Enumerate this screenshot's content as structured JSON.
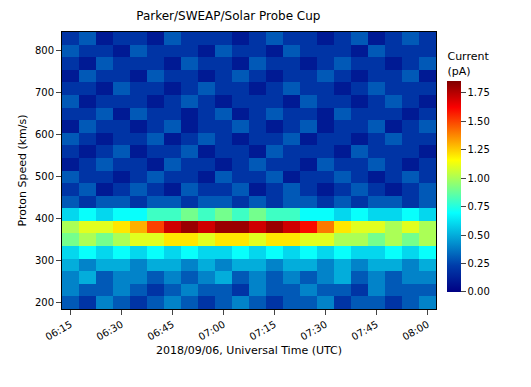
{
  "chart_data": {
    "type": "heatmap",
    "title": "Parker/SWEAP/Solar Probe Cup",
    "x_label": "2018/09/06, Universal Time (UTC)",
    "y_label": "Proton Speed (km/s)",
    "color": "Jet",
    "x": [
      "2018-09-06 06:15",
      "2018-09-06 06:20",
      "2018-09-06 06:25",
      "2018-09-06 06:30",
      "2018-09-06 06:35",
      "2018-09-06 06:40",
      "2018-09-06 06:45",
      "2018-09-06 06:50",
      "2018-09-06 06:55",
      "2018-09-06 07:00",
      "2018-09-06 07:05",
      "2018-09-06 07:10",
      "2018-09-06 07:15",
      "2018-09-06 07:20",
      "2018-09-06 07:25",
      "2018-09-06 07:30",
      "2018-09-06 07:35",
      "2018-09-06 07:40",
      "2018-09-06 07:45",
      "2018-09-06 07:50",
      "2018-09-06 07:55",
      "2018-09-06 08:00"
    ],
    "y": [
      200,
      230,
      260,
      290,
      320,
      350,
      380,
      410,
      440,
      470,
      500,
      530,
      560,
      590,
      620,
      650,
      680,
      710,
      740,
      770,
      800,
      830
    ],
    "z": [
      [
        0.3,
        0.2,
        0.4,
        0.3,
        0.2,
        0.3,
        0.4,
        0.3,
        0.2,
        0.3,
        0.4,
        0.3,
        0.2,
        0.3,
        0.3,
        0.4,
        0.2,
        0.3,
        0.3,
        0.2,
        0.3,
        0.4
      ],
      [
        0.4,
        0.3,
        0.3,
        0.4,
        0.3,
        0.2,
        0.3,
        0.4,
        0.3,
        0.3,
        0.2,
        0.4,
        0.3,
        0.3,
        0.4,
        0.3,
        0.3,
        0.2,
        0.4,
        0.3,
        0.3,
        0.3
      ],
      [
        0.4,
        0.5,
        0.3,
        0.4,
        0.4,
        0.3,
        0.4,
        0.3,
        0.4,
        0.5,
        0.3,
        0.4,
        0.3,
        0.4,
        0.3,
        0.4,
        0.5,
        0.3,
        0.4,
        0.3,
        0.4,
        0.4
      ],
      [
        0.5,
        0.4,
        0.5,
        0.5,
        0.4,
        0.5,
        0.5,
        0.4,
        0.5,
        0.4,
        0.5,
        0.5,
        0.4,
        0.5,
        0.5,
        0.4,
        0.5,
        0.4,
        0.5,
        0.5,
        0.4,
        0.5
      ],
      [
        0.6,
        0.7,
        0.6,
        0.7,
        0.6,
        0.7,
        0.6,
        0.7,
        0.6,
        0.6,
        0.7,
        0.6,
        0.7,
        0.6,
        0.7,
        0.6,
        0.7,
        0.6,
        0.6,
        0.7,
        0.6,
        0.7
      ],
      [
        0.9,
        1.0,
        0.9,
        1.0,
        1.1,
        1.1,
        1.2,
        1.2,
        1.1,
        1.2,
        1.2,
        1.1,
        1.2,
        1.2,
        1.1,
        1.1,
        1.0,
        1.0,
        0.9,
        1.0,
        0.9,
        1.0
      ],
      [
        1.0,
        1.1,
        1.1,
        1.2,
        1.3,
        1.5,
        1.7,
        1.8,
        1.7,
        1.8,
        1.8,
        1.7,
        1.8,
        1.7,
        1.6,
        1.4,
        1.2,
        1.1,
        1.1,
        1.0,
        1.1,
        1.0
      ],
      [
        0.6,
        0.7,
        0.6,
        0.7,
        0.7,
        0.8,
        0.8,
        0.9,
        0.8,
        0.9,
        0.8,
        0.9,
        0.8,
        0.8,
        0.7,
        0.7,
        0.6,
        0.7,
        0.6,
        0.6,
        0.7,
        0.6
      ],
      [
        0.3,
        0.2,
        0.3,
        0.3,
        0.2,
        0.3,
        0.3,
        0.2,
        0.3,
        0.3,
        0.2,
        0.3,
        0.2,
        0.3,
        0.3,
        0.2,
        0.3,
        0.2,
        0.3,
        0.3,
        0.2,
        0.3
      ],
      [
        0.2,
        0.3,
        0.1,
        0.2,
        0.3,
        0.2,
        0.1,
        0.3,
        0.2,
        0.2,
        0.3,
        0.1,
        0.2,
        0.3,
        0.2,
        0.1,
        0.2,
        0.3,
        0.2,
        0.1,
        0.2,
        0.3
      ],
      [
        0.3,
        0.2,
        0.2,
        0.1,
        0.2,
        0.3,
        0.2,
        0.2,
        0.1,
        0.3,
        0.2,
        0.2,
        0.3,
        0.1,
        0.2,
        0.2,
        0.3,
        0.2,
        0.1,
        0.2,
        0.3,
        0.2
      ],
      [
        0.1,
        0.2,
        0.3,
        0.2,
        0.2,
        0.1,
        0.3,
        0.2,
        0.2,
        0.1,
        0.2,
        0.3,
        0.2,
        0.2,
        0.1,
        0.3,
        0.2,
        0.2,
        0.3,
        0.2,
        0.1,
        0.2
      ],
      [
        0.2,
        0.1,
        0.2,
        0.3,
        0.1,
        0.2,
        0.2,
        0.3,
        0.1,
        0.2,
        0.2,
        0.1,
        0.3,
        0.2,
        0.2,
        0.2,
        0.1,
        0.3,
        0.2,
        0.2,
        0.2,
        0.1
      ],
      [
        0.3,
        0.2,
        0.1,
        0.2,
        0.2,
        0.3,
        0.1,
        0.2,
        0.3,
        0.2,
        0.1,
        0.2,
        0.2,
        0.3,
        0.1,
        0.2,
        0.2,
        0.1,
        0.2,
        0.3,
        0.2,
        0.2
      ],
      [
        0.1,
        0.3,
        0.2,
        0.2,
        0.1,
        0.2,
        0.3,
        0.1,
        0.2,
        0.2,
        0.3,
        0.2,
        0.1,
        0.2,
        0.3,
        0.1,
        0.2,
        0.2,
        0.3,
        0.1,
        0.2,
        0.3
      ],
      [
        0.2,
        0.2,
        0.3,
        0.1,
        0.3,
        0.2,
        0.2,
        0.1,
        0.2,
        0.3,
        0.1,
        0.2,
        0.3,
        0.2,
        0.2,
        0.1,
        0.3,
        0.2,
        0.2,
        0.2,
        0.1,
        0.2
      ],
      [
        0.3,
        0.1,
        0.2,
        0.2,
        0.2,
        0.1,
        0.2,
        0.3,
        0.2,
        0.1,
        0.2,
        0.2,
        0.2,
        0.1,
        0.3,
        0.2,
        0.2,
        0.1,
        0.2,
        0.3,
        0.2,
        0.1
      ],
      [
        0.2,
        0.2,
        0.1,
        0.3,
        0.2,
        0.2,
        0.1,
        0.2,
        0.3,
        0.2,
        0.2,
        0.1,
        0.2,
        0.3,
        0.2,
        0.2,
        0.1,
        0.2,
        0.3,
        0.2,
        0.2,
        0.2
      ],
      [
        0.1,
        0.3,
        0.2,
        0.2,
        0.1,
        0.3,
        0.2,
        0.2,
        0.1,
        0.2,
        0.3,
        0.2,
        0.1,
        0.2,
        0.2,
        0.3,
        0.2,
        0.1,
        0.2,
        0.2,
        0.3,
        0.1
      ],
      [
        0.2,
        0.1,
        0.3,
        0.2,
        0.2,
        0.2,
        0.1,
        0.3,
        0.2,
        0.2,
        0.1,
        0.3,
        0.2,
        0.2,
        0.1,
        0.2,
        0.3,
        0.2,
        0.2,
        0.1,
        0.2,
        0.3
      ],
      [
        0.3,
        0.2,
        0.2,
        0.1,
        0.3,
        0.2,
        0.2,
        0.2,
        0.1,
        0.3,
        0.2,
        0.2,
        0.1,
        0.3,
        0.2,
        0.2,
        0.2,
        0.1,
        0.3,
        0.2,
        0.2,
        0.2
      ],
      [
        0.2,
        0.3,
        0.1,
        0.2,
        0.2,
        0.1,
        0.3,
        0.2,
        0.2,
        0.2,
        0.1,
        0.2,
        0.3,
        0.2,
        0.2,
        0.1,
        0.2,
        0.3,
        0.1,
        0.2,
        0.3,
        0.2
      ]
    ],
    "xlim": [
      "2018-09-06 06:12:30",
      "2018-09-06 08:02:30"
    ],
    "xticks": [
      {
        "value": "2018-09-06 06:15",
        "label": "06:15"
      },
      {
        "value": "2018-09-06 06:30",
        "label": "06:30"
      },
      {
        "value": "2018-09-06 06:45",
        "label": "06:45"
      },
      {
        "value": "2018-09-06 07:00",
        "label": "07:00"
      },
      {
        "value": "2018-09-06 07:15",
        "label": "07:15"
      },
      {
        "value": "2018-09-06 07:30",
        "label": "07:30"
      },
      {
        "value": "2018-09-06 07:45",
        "label": "07:45"
      },
      {
        "value": "2018-09-06 08:00",
        "label": "08:00"
      }
    ],
    "ylim": [
      185,
      845
    ],
    "yticks": [
      200,
      300,
      400,
      500,
      600,
      700,
      800
    ],
    "colorbar_title": "Current (pA)",
    "colorbar_range": [
      0,
      1.85
    ],
    "colorbar_ticks": [
      {
        "value": 0,
        "label": "0.00"
      },
      {
        "value": 0.25,
        "label": "0.25"
      },
      {
        "value": 0.5,
        "label": "0.50"
      },
      {
        "value": 0.75,
        "label": "0.75"
      },
      {
        "value": 1,
        "label": "1.00"
      },
      {
        "value": 1.25,
        "label": "1.25"
      },
      {
        "value": 1.5,
        "label": "1.50"
      },
      {
        "value": 1.75,
        "label": "1.75"
      }
    ]
  }
}
